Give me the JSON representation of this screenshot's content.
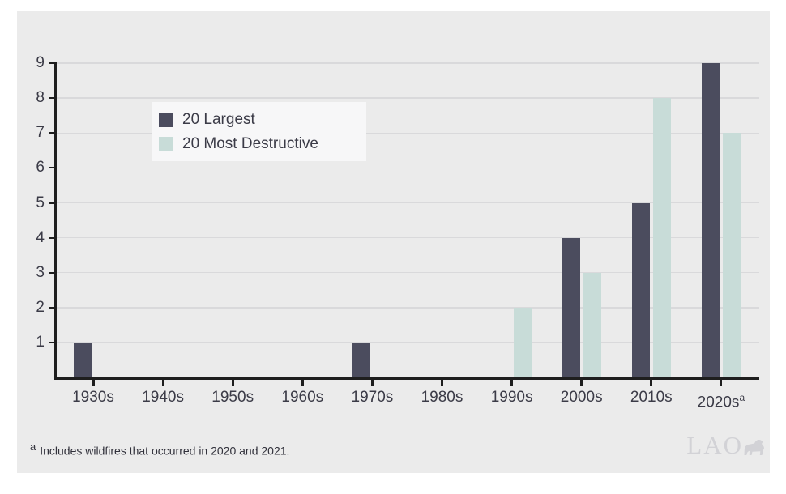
{
  "chart_data": {
    "type": "bar",
    "title": "",
    "xlabel": "",
    "ylabel": "",
    "categories": [
      "1930s",
      "1940s",
      "1950s",
      "1960s",
      "1970s",
      "1980s",
      "1990s",
      "2000s",
      "2010s",
      "2020s"
    ],
    "category_sup": [
      "",
      "",
      "",
      "",
      "",
      "",
      "",
      "",
      "",
      "a"
    ],
    "series": [
      {
        "name": "20 Largest",
        "color": "#4b4c5e",
        "values": [
          1,
          0,
          0,
          0,
          1,
          0,
          0,
          4,
          5,
          9
        ]
      },
      {
        "name": "20 Most Destructive",
        "color": "#c8dcd8",
        "values": [
          0,
          0,
          0,
          0,
          0,
          0,
          2,
          3,
          8,
          7
        ]
      }
    ],
    "ylim": [
      0,
      9
    ],
    "yticks": [
      1,
      2,
      3,
      4,
      5,
      6,
      7,
      8,
      9
    ],
    "grid": true,
    "legend_position": "inside-upper-left"
  },
  "legend": {
    "items": [
      {
        "label": "20 Largest",
        "color": "#4b4c5e"
      },
      {
        "label": "20 Most Destructive",
        "color": "#c8dcd8"
      }
    ]
  },
  "footnote": {
    "marker": "a",
    "text": "Includes wildfires that occurred in 2020 and 2021."
  },
  "watermark": {
    "text": "LAO"
  },
  "colors": {
    "page_bg": "#ffffff",
    "panel_bg": "#ebebeb",
    "gridline": "#d9d9db",
    "axis": "#1e1e1e",
    "text": "#3b3b47",
    "legend_bg": "#f7f7f8",
    "watermark": "#d2d2d6"
  }
}
